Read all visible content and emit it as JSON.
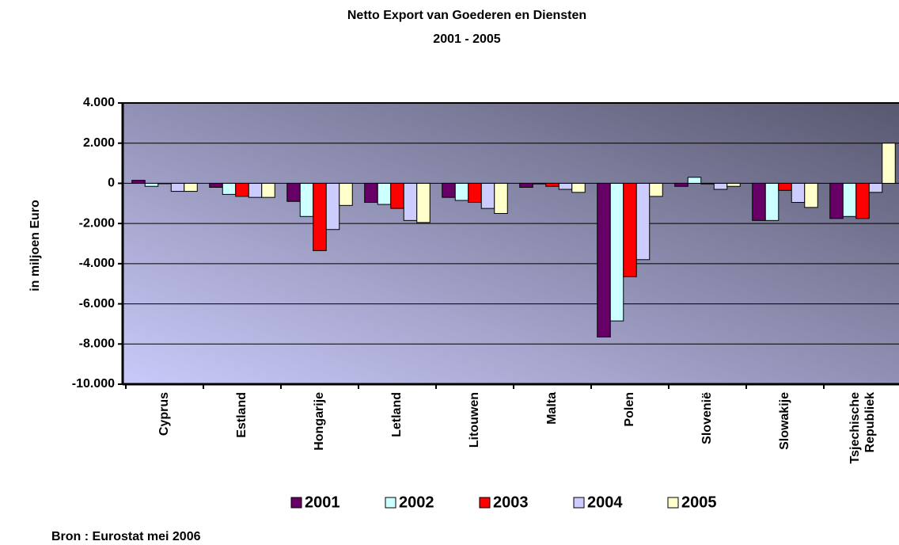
{
  "chart_data": {
    "type": "bar",
    "title": "Netto Export van Goederen en Diensten",
    "subtitle": "2001 - 2005",
    "y_label": "in miljoen Euro",
    "source": "Bron : Eurostat mei 2006",
    "categories": [
      "Cyprus",
      "Estland",
      "Hongarije",
      "Letland",
      "Litouwen",
      "Malta",
      "Polen",
      "Slovenië",
      "Slowakije",
      "Tsjechische Republiek"
    ],
    "series": [
      {
        "name": "2001",
        "color": "#660066",
        "values": [
          150,
          -200,
          -900,
          -950,
          -700,
          -200,
          -7650,
          -150,
          -1850,
          -1750
        ]
      },
      {
        "name": "2002",
        "color": "#ccffff",
        "values": [
          -150,
          -550,
          -1650,
          -1050,
          -850,
          -30,
          -6850,
          300,
          -1850,
          -1650
        ]
      },
      {
        "name": "2003",
        "color": "#ff0000",
        "values": [
          -20,
          -650,
          -3350,
          -1250,
          -950,
          -150,
          -4650,
          -30,
          -350,
          -1750
        ]
      },
      {
        "name": "2004",
        "color": "#ccccff",
        "values": [
          -400,
          -700,
          -2300,
          -1850,
          -1250,
          -300,
          -3800,
          -300,
          -950,
          -450
        ]
      },
      {
        "name": "2005",
        "color": "#ffffcc",
        "values": [
          -400,
          -700,
          -1100,
          -1950,
          -1500,
          -450,
          -650,
          -150,
          -1200,
          2000
        ]
      }
    ],
    "ylim": [
      -10000,
      4000
    ],
    "yticks": [
      {
        "value": -10000,
        "label": "-10.000"
      },
      {
        "value": -8000,
        "label": "-8.000"
      },
      {
        "value": -6000,
        "label": "-6.000"
      },
      {
        "value": -4000,
        "label": "-4.000"
      },
      {
        "value": -2000,
        "label": "-2.000"
      },
      0,
      {
        "value": 2000,
        "label": "2.000"
      },
      {
        "value": 4000,
        "label": "4.000"
      }
    ],
    "grid": true,
    "legend": "bottom"
  }
}
